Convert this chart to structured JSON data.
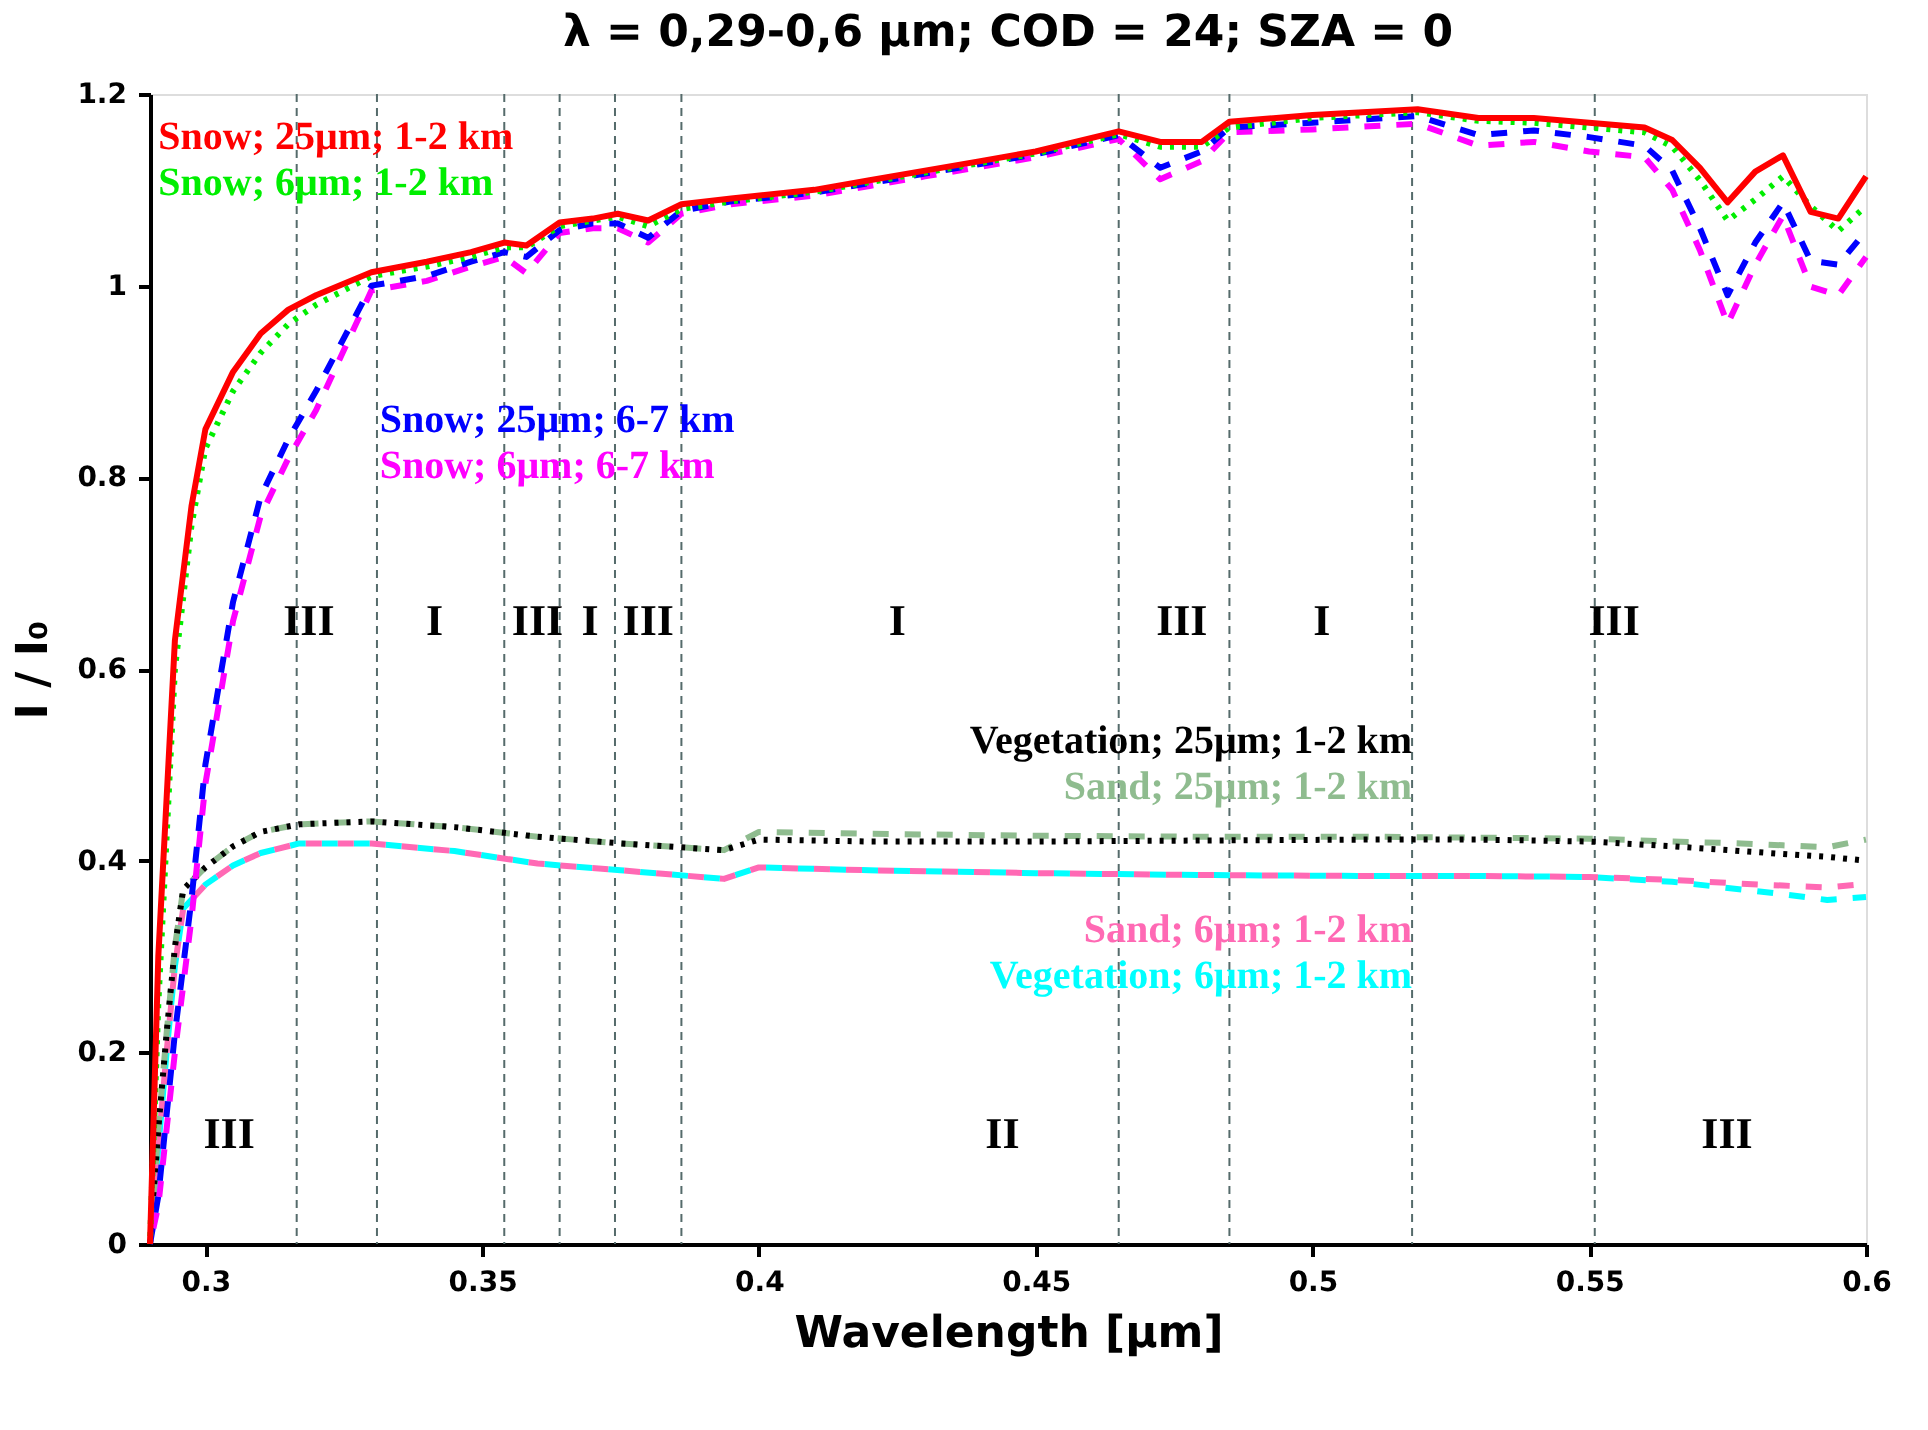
{
  "chart_data": {
    "type": "line",
    "title": "λ = 0,29-0,6 μm; COD = 24; SZA = 0",
    "xlabel": "Wavelength [μm]",
    "ylabel": "I / I₀",
    "xlim": [
      0.29,
      0.6
    ],
    "ylim": [
      0,
      1.2
    ],
    "xticks": [
      0.3,
      0.35,
      0.4,
      0.45,
      0.5,
      0.55,
      0.6
    ],
    "yticks": [
      0,
      0.2,
      0.4,
      0.6,
      0.8,
      1,
      1.2
    ],
    "grid": false,
    "marker": "none",
    "x": [
      0.29,
      0.2915,
      0.2945,
      0.2975,
      0.3,
      0.305,
      0.31,
      0.315,
      0.32,
      0.33,
      0.34,
      0.348,
      0.354,
      0.358,
      0.364,
      0.37,
      0.3745,
      0.38,
      0.386,
      0.395,
      0.41,
      0.42,
      0.43,
      0.44,
      0.45,
      0.465,
      0.4725,
      0.48,
      0.485,
      0.5,
      0.519,
      0.53,
      0.54,
      0.55,
      0.56,
      0.565,
      0.57,
      0.575,
      0.58,
      0.585,
      0.59,
      0.595,
      0.6
    ],
    "series": [
      {
        "name": "Snow; 25μm; 1-2 km",
        "color": "#ff0000",
        "line_style": "solid",
        "values": [
          0,
          0.3,
          0.63,
          0.77,
          0.85,
          0.91,
          0.95,
          0.975,
          0.99,
          1.014,
          1.025,
          1.035,
          1.045,
          1.042,
          1.066,
          1.07,
          1.075,
          1.068,
          1.085,
          1.091,
          1.1,
          1.11,
          1.12,
          1.13,
          1.14,
          1.161,
          1.15,
          1.15,
          1.171,
          1.178,
          1.184,
          1.175,
          1.175,
          1.17,
          1.165,
          1.152,
          1.123,
          1.087,
          1.119,
          1.136,
          1.077,
          1.07,
          1.114
        ]
      },
      {
        "name": "Snow; 6μm; 1-2 km",
        "color": "#00ee00",
        "line_style": "dotted",
        "values": [
          0,
          0.25,
          0.6,
          0.75,
          0.83,
          0.89,
          0.93,
          0.96,
          0.98,
          1.01,
          1.02,
          1.03,
          1.04,
          1.04,
          1.062,
          1.068,
          1.072,
          1.062,
          1.08,
          1.088,
          1.098,
          1.108,
          1.118,
          1.128,
          1.138,
          1.158,
          1.145,
          1.145,
          1.165,
          1.175,
          1.181,
          1.172,
          1.17,
          1.165,
          1.16,
          1.145,
          1.11,
          1.068,
          1.09,
          1.114,
          1.083,
          1.057,
          1.083
        ]
      },
      {
        "name": "Snow; 25μm; 6-7 km",
        "color": "#0000ff",
        "line_style": "dashed",
        "values": [
          0,
          0.05,
          0.22,
          0.36,
          0.5,
          0.67,
          0.78,
          0.84,
          0.89,
          1.0,
          1.01,
          1.025,
          1.035,
          1.03,
          1.058,
          1.065,
          1.065,
          1.05,
          1.078,
          1.088,
          1.097,
          1.107,
          1.117,
          1.127,
          1.137,
          1.157,
          1.123,
          1.14,
          1.165,
          1.17,
          1.177,
          1.157,
          1.162,
          1.155,
          1.146,
          1.12,
          1.06,
          0.99,
          1.045,
          1.087,
          1.026,
          1.022,
          1.057
        ]
      },
      {
        "name": "Snow; 6μm; 6-7 km",
        "color": "#ff00ff",
        "line_style": "dashed",
        "values": [
          0,
          0.04,
          0.2,
          0.34,
          0.48,
          0.65,
          0.76,
          0.82,
          0.87,
          0.995,
          1.005,
          1.02,
          1.03,
          1.013,
          1.055,
          1.06,
          1.06,
          1.045,
          1.075,
          1.085,
          1.094,
          1.104,
          1.114,
          1.124,
          1.134,
          1.153,
          1.111,
          1.13,
          1.16,
          1.163,
          1.169,
          1.146,
          1.15,
          1.14,
          1.134,
          1.1,
          1.037,
          0.96,
          1.022,
          1.073,
          0.999,
          0.99,
          1.03
        ]
      },
      {
        "name": "Vegetation; 25μm; 1-2 km",
        "color": "#000000",
        "line_style": "dotted",
        "x": [
          0.29,
          0.2915,
          0.293,
          0.2945,
          0.296,
          0.3,
          0.305,
          0.31,
          0.317,
          0.33,
          0.345,
          0.36,
          0.375,
          0.3937,
          0.4,
          0.42,
          0.45,
          0.48,
          0.51,
          0.53,
          0.55,
          0.565,
          0.5775,
          0.585,
          0.593,
          0.6
        ],
        "values": [
          0,
          0.12,
          0.22,
          0.31,
          0.37,
          0.393,
          0.415,
          0.43,
          0.438,
          0.441,
          0.435,
          0.425,
          0.418,
          0.411,
          0.422,
          0.42,
          0.42,
          0.421,
          0.422,
          0.422,
          0.42,
          0.415,
          0.41,
          0.407,
          0.404,
          0.4
        ]
      },
      {
        "name": "Sand; 25μm; 1-2 km",
        "color": "#8fbc8f",
        "line_style": "dashed",
        "x": [
          0.29,
          0.2915,
          0.293,
          0.2945,
          0.296,
          0.3,
          0.305,
          0.31,
          0.317,
          0.33,
          0.345,
          0.36,
          0.375,
          0.3937,
          0.4,
          0.42,
          0.45,
          0.48,
          0.51,
          0.53,
          0.55,
          0.565,
          0.5775,
          0.585,
          0.593,
          0.6
        ],
        "values": [
          0,
          0.12,
          0.22,
          0.31,
          0.37,
          0.393,
          0.415,
          0.43,
          0.438,
          0.441,
          0.435,
          0.425,
          0.418,
          0.411,
          0.43,
          0.428,
          0.426,
          0.425,
          0.425,
          0.424,
          0.423,
          0.42,
          0.418,
          0.416,
          0.414,
          0.422
        ]
      },
      {
        "name": "Sand; 6μm; 1-2 km",
        "color": "#ff69b4",
        "line_style": "dashed",
        "x": [
          0.29,
          0.2915,
          0.293,
          0.2945,
          0.296,
          0.3,
          0.305,
          0.31,
          0.317,
          0.33,
          0.345,
          0.36,
          0.375,
          0.3937,
          0.4,
          0.42,
          0.45,
          0.48,
          0.51,
          0.53,
          0.55,
          0.565,
          0.5775,
          0.585,
          0.593,
          0.6
        ],
        "values": [
          0,
          0.1,
          0.2,
          0.29,
          0.35,
          0.375,
          0.395,
          0.408,
          0.418,
          0.418,
          0.41,
          0.397,
          0.39,
          0.381,
          0.393,
          0.39,
          0.387,
          0.385,
          0.384,
          0.384,
          0.383,
          0.38,
          0.376,
          0.374,
          0.372,
          0.376
        ]
      },
      {
        "name": "Vegetation; 6μm; 1-2 km",
        "color": "#00ffff",
        "line_style": "dashed",
        "x": [
          0.29,
          0.2915,
          0.293,
          0.2945,
          0.296,
          0.3,
          0.305,
          0.31,
          0.317,
          0.33,
          0.345,
          0.36,
          0.375,
          0.3937,
          0.4,
          0.42,
          0.45,
          0.48,
          0.51,
          0.53,
          0.55,
          0.565,
          0.5775,
          0.585,
          0.593,
          0.6
        ],
        "values": [
          0,
          0.1,
          0.2,
          0.29,
          0.35,
          0.375,
          0.395,
          0.408,
          0.418,
          0.418,
          0.41,
          0.397,
          0.39,
          0.381,
          0.393,
          0.39,
          0.387,
          0.385,
          0.384,
          0.384,
          0.383,
          0.378,
          0.37,
          0.365,
          0.359,
          0.362
        ]
      }
    ],
    "ref_lines": [
      {
        "axis": "x",
        "value": 0.331,
        "color": "#556b6b",
        "line_style": "dashed"
      },
      {
        "axis": "x",
        "value": 0.354,
        "color": "#556b6b",
        "line_style": "dashed"
      },
      {
        "axis": "x",
        "value": 0.364,
        "color": "#556b6b",
        "line_style": "dashed"
      },
      {
        "axis": "x",
        "value": 0.374,
        "color": "#556b6b",
        "line_style": "dashed"
      },
      {
        "axis": "x",
        "value": 0.386,
        "color": "#556b6b",
        "line_style": "dashed"
      },
      {
        "axis": "x",
        "value": 0.465,
        "color": "#556b6b",
        "line_style": "dashed"
      },
      {
        "axis": "x",
        "value": 0.485,
        "color": "#556b6b",
        "line_style": "dashed"
      },
      {
        "axis": "x",
        "value": 0.518,
        "color": "#556b6b",
        "line_style": "dashed"
      },
      {
        "axis": "x",
        "value": 0.3165,
        "color": "#556b6b",
        "line_style": "dashed"
      },
      {
        "axis": "x",
        "value": 0.551,
        "color": "#556b6b",
        "line_style": "dashed"
      }
    ],
    "annotations": [
      "III",
      "I",
      "III",
      "I",
      "III",
      "I",
      "III",
      "I",
      "III",
      "III",
      "II",
      "III"
    ]
  }
}
